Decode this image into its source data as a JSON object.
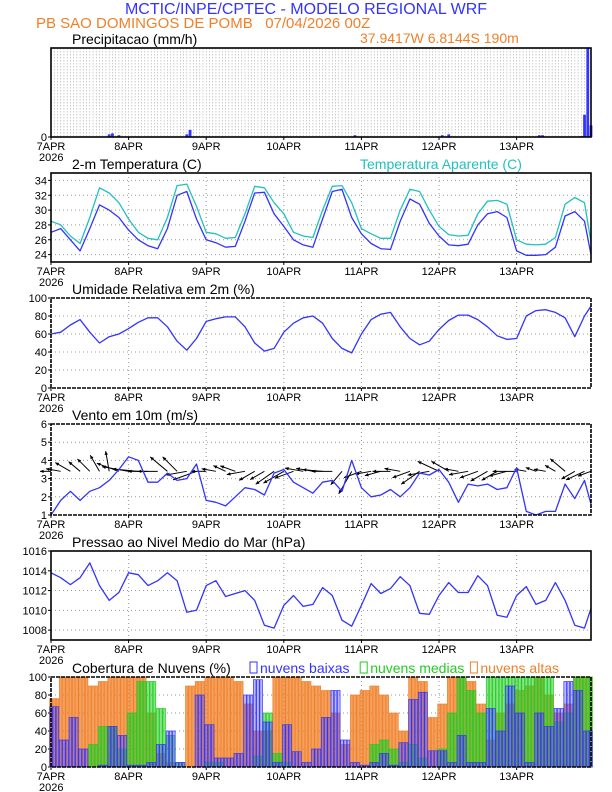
{
  "header": {
    "title": "MCTIC/INPE/CPTEC - MODELO REGIONAL WRF",
    "subtitle": "PB SAO DOMINGOS DE POMB   07/04/2026 00Z",
    "coordinates": "37.9417W 6.8144S 190m"
  },
  "colors": {
    "title": "#3333ff",
    "subtitle": "#f0802a",
    "temperature": "#3333ff",
    "apparent": "#22c0c0",
    "low_clouds": "#3333ff",
    "medium_clouds": "#22cc22",
    "high_clouds": "#f0802a"
  },
  "x_axis": {
    "ticks": [
      "7APR",
      "8APR",
      "9APR",
      "10APR",
      "11APR",
      "12APR",
      "13APR"
    ],
    "year": "2026",
    "step_hours": 3
  },
  "chart_data": [
    {
      "id": "precip",
      "type": "bar",
      "title": "Precipitacao (mm/h)",
      "ylim": [
        0,
        10
      ],
      "yticks": [
        "0"
      ],
      "grid": true,
      "values_hour_mm": [
        [
          18,
          0.3
        ],
        [
          19,
          0.4
        ],
        [
          21,
          0.2
        ],
        [
          42,
          0.3
        ],
        [
          43,
          0.8
        ],
        [
          94,
          0.2
        ],
        [
          121,
          0.2
        ],
        [
          123,
          0.3
        ],
        [
          151,
          0.2
        ],
        [
          152,
          0.2
        ],
        [
          164,
          0.1
        ],
        [
          165,
          2.5
        ],
        [
          166,
          10
        ],
        [
          167,
          1.3
        ]
      ]
    },
    {
      "id": "temp",
      "type": "line",
      "title": "2-m Temperatura (C)",
      "ylim": [
        23,
        35
      ],
      "yticks": [
        24,
        26,
        28,
        30,
        32,
        34
      ],
      "grid": true,
      "series": [
        {
          "name": "2-m Temperatura (C)",
          "color": "#3333ff",
          "values": [
            27.0,
            27.5,
            26.0,
            24.5,
            27.5,
            30.7,
            30.0,
            29.0,
            27.3,
            26.0,
            25.2,
            24.8,
            27.5,
            32.0,
            32.5,
            28.8,
            26.0,
            25.6,
            25.0,
            25.1,
            28.5,
            32.3,
            32.4,
            29.5,
            27.8,
            26.0,
            25.3,
            25.0,
            28.8,
            32.5,
            32.8,
            29.0,
            26.8,
            25.5,
            24.8,
            24.7,
            28.5,
            31.5,
            30.8,
            28.2,
            26.5,
            25.3,
            25.2,
            25.4,
            28.0,
            29.5,
            29.8,
            29.0,
            24.5,
            23.9,
            23.9,
            24.0,
            25.0,
            29.2,
            29.8,
            28.5,
            24.0
          ]
        },
        {
          "name": "Temperatura Aparente (C)",
          "color": "#22c0c0",
          "values": [
            28.5,
            28.0,
            26.5,
            25.5,
            29.0,
            33.0,
            32.3,
            31.0,
            28.8,
            27.0,
            26.2,
            26.0,
            29.0,
            33.3,
            33.5,
            30.5,
            27.0,
            26.8,
            26.2,
            26.3,
            29.5,
            33.2,
            33.0,
            31.0,
            29.5,
            27.0,
            26.5,
            26.3,
            30.0,
            33.2,
            33.3,
            31.0,
            27.5,
            26.8,
            26.2,
            26.2,
            30.0,
            32.8,
            32.5,
            30.0,
            27.8,
            26.7,
            26.5,
            26.6,
            29.5,
            31.2,
            31.3,
            30.8,
            26.0,
            25.4,
            25.3,
            25.4,
            26.3,
            30.8,
            31.7,
            31.0,
            25.7
          ]
        }
      ]
    },
    {
      "id": "rh",
      "type": "line",
      "title": "Umidade Relativa em 2m (%)",
      "ylim": [
        0,
        100
      ],
      "yticks": [
        0,
        20,
        40,
        60,
        80,
        100
      ],
      "grid": true,
      "series": [
        {
          "color": "#3333ff",
          "values": [
            60,
            62,
            70,
            76,
            62,
            50,
            57,
            60,
            66,
            73,
            78,
            78,
            68,
            52,
            42,
            55,
            74,
            77,
            79,
            79,
            68,
            50,
            41,
            44,
            62,
            72,
            78,
            80,
            72,
            55,
            44,
            39,
            60,
            76,
            82,
            84,
            68,
            55,
            48,
            52,
            65,
            75,
            81,
            81,
            76,
            68,
            58,
            54,
            55,
            80,
            86,
            87,
            84,
            78,
            57,
            80,
            91
          ]
        }
      ]
    },
    {
      "id": "wind",
      "type": "line",
      "title": "Vento em 10m (m/s)",
      "ylim": [
        1,
        6
      ],
      "yticks": [
        1,
        2,
        3,
        4,
        5,
        6
      ],
      "grid": true,
      "arrow_baseline": 3.4,
      "series": [
        {
          "color": "#3333ff",
          "values": [
            1.0,
            1.8,
            2.3,
            1.8,
            2.3,
            2.5,
            2.9,
            3.5,
            4.2,
            4.0,
            2.8,
            2.8,
            3.3,
            2.9,
            3.0,
            3.8,
            1.8,
            1.7,
            1.5,
            2.0,
            2.5,
            2.4,
            2.1,
            3.3,
            3.5,
            2.8,
            2.5,
            2.2,
            2.8,
            2.9,
            2.3,
            4.0,
            2.5,
            2.0,
            2.1,
            2.4,
            2.0,
            2.5,
            3.3,
            3.2,
            3.5,
            2.8,
            1.7,
            2.7,
            2.6,
            2.7,
            2.4,
            2.5,
            3.6,
            1.2,
            1.0,
            1.2,
            1.2,
            2.7,
            1.9,
            2.9,
            1.6
          ]
        }
      ],
      "wind_dir_deg": [
        90,
        100,
        120,
        130,
        135,
        150,
        170,
        110,
        100,
        95,
        90,
        90,
        130,
        135,
        80,
        70,
        90,
        100,
        115,
        110,
        80,
        60,
        60,
        55,
        60,
        70,
        100,
        100,
        95,
        90,
        40,
        30,
        70,
        80,
        75,
        90,
        100,
        70,
        55,
        80,
        115,
        120,
        100,
        80,
        70,
        60,
        60,
        75,
        90,
        100,
        110,
        100,
        120,
        130,
        60,
        65,
        70
      ]
    },
    {
      "id": "pressure",
      "type": "line",
      "title": "Pressao ao Nivel Medio do Mar (hPa)",
      "ylim": [
        1007,
        1016
      ],
      "yticks": [
        1008,
        1010,
        1012,
        1014,
        1016
      ],
      "grid": true,
      "series": [
        {
          "color": "#3333ff",
          "values": [
            1013.8,
            1013.3,
            1012.6,
            1013.3,
            1014.8,
            1012.5,
            1011.0,
            1011.8,
            1013.8,
            1013.6,
            1012.5,
            1013.0,
            1013.8,
            1013.0,
            1009.8,
            1010.0,
            1012.5,
            1013.0,
            1011.4,
            1011.7,
            1012.0,
            1011.0,
            1008.5,
            1008.2,
            1010.5,
            1011.5,
            1010.4,
            1010.6,
            1012.3,
            1011.5,
            1009.0,
            1008.4,
            1010.5,
            1012.7,
            1011.7,
            1012.2,
            1013.4,
            1012.5,
            1009.7,
            1009.6,
            1011.5,
            1012.8,
            1011.8,
            1011.8,
            1013.5,
            1012.5,
            1009.5,
            1009.3,
            1011.5,
            1012.4,
            1010.6,
            1011.0,
            1012.8,
            1011.0,
            1008.5,
            1008.2,
            1010.2
          ]
        }
      ]
    },
    {
      "id": "clouds",
      "type": "bar",
      "title": "Cobertura de Nuvens (%)",
      "ylim": [
        0,
        100
      ],
      "yticks": [
        0,
        20,
        40,
        60,
        80,
        100
      ],
      "grid": true,
      "legend": "top",
      "series": [
        {
          "name": "nuvens altas",
          "color": "#f0802a",
          "values": [
            76,
            100,
            100,
            100,
            90,
            95,
            100,
            100,
            100,
            100,
            60,
            15,
            5,
            0,
            90,
            95,
            100,
            100,
            100,
            95,
            70,
            40,
            40,
            100,
            100,
            100,
            95,
            90,
            85,
            60,
            25,
            80,
            85,
            90,
            80,
            60,
            40,
            100,
            95,
            55,
            70,
            100,
            100,
            95,
            70,
            30,
            60,
            70,
            85,
            90,
            100,
            80,
            60,
            70,
            100,
            100,
            100
          ]
        },
        {
          "name": "nuvens medias",
          "color": "#22cc22",
          "values": [
            0,
            0,
            0,
            0,
            25,
            45,
            45,
            20,
            60,
            95,
            95,
            65,
            35,
            5,
            0,
            0,
            5,
            5,
            0,
            0,
            0,
            12,
            60,
            15,
            5,
            0,
            0,
            0,
            0,
            0,
            0,
            0,
            0,
            25,
            30,
            20,
            5,
            25,
            10,
            0,
            20,
            60,
            100,
            85,
            60,
            100,
            100,
            100,
            100,
            100,
            100,
            100,
            50,
            60,
            100,
            100,
            100
          ]
        },
        {
          "name": "nuvens baixas",
          "color": "#3333ff",
          "values": [
            67,
            30,
            55,
            20,
            0,
            2,
            45,
            35,
            2,
            2,
            5,
            25,
            40,
            5,
            0,
            80,
            47,
            10,
            10,
            15,
            80,
            97,
            50,
            5,
            47,
            17,
            5,
            20,
            55,
            85,
            30,
            5,
            2,
            5,
            15,
            2,
            27,
            75,
            83,
            18,
            18,
            5,
            35,
            5,
            5,
            65,
            40,
            90,
            60,
            5,
            60,
            45,
            65,
            95,
            85,
            40,
            52
          ]
        }
      ]
    }
  ]
}
